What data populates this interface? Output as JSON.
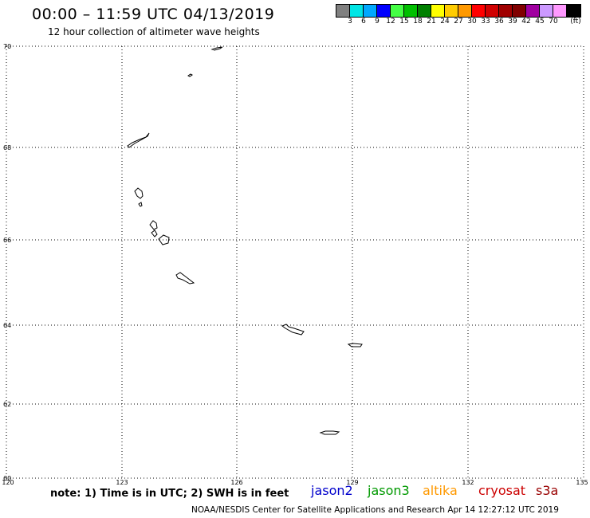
{
  "header": {
    "title": "00:00 – 11:59 UTC 04/13/2019",
    "subtitle": "12 hour collection of altimeter wave heights"
  },
  "legend": {
    "colors": [
      "#808080",
      "#00e5e5",
      "#00a8ff",
      "#0000ff",
      "#44ff44",
      "#00c000",
      "#008000",
      "#ffff00",
      "#ffcc00",
      "#ff9900",
      "#ff0000",
      "#d00000",
      "#a00000",
      "#800000",
      "#a000a0",
      "#cc99ff",
      "#ff99ff",
      "#000000"
    ],
    "labels": [
      "3",
      "6",
      "9",
      "12",
      "15",
      "18",
      "21",
      "24",
      "27",
      "30",
      "33",
      "36",
      "39",
      "42",
      "45",
      "70",
      "(ft)"
    ]
  },
  "map": {
    "lat_labels": [
      "70",
      "68",
      "66",
      "64",
      "62",
      "60"
    ],
    "lon_labels": [
      "120",
      "123",
      "126",
      "129",
      "132",
      "135"
    ]
  },
  "note": "note: 1) Time is in UTC; 2) SWH is in feet",
  "satellites": [
    {
      "name": "jason2",
      "color": "#0000cc"
    },
    {
      "name": "jason3",
      "color": "#009900"
    },
    {
      "name": "altika",
      "color": "#ff9900"
    },
    {
      "name": "cryosat",
      "color": "#cc0000"
    },
    {
      "name": "s3a",
      "color": "#990000"
    }
  ],
  "footer": "NOAA/NESDIS Center for Satellite Applications and Research   Apr 14 12:27:12 UTC 2019"
}
